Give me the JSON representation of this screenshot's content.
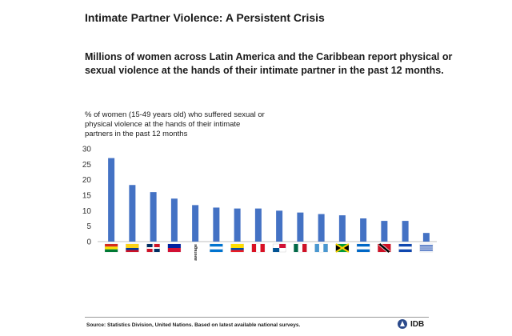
{
  "header": {
    "title": "Intimate Partner Violence: A Persistent Crisis",
    "subtitle": "Millions of women across Latin America and the Caribbean report physical or sexual violence at the hands of their intimate partner in the past 12 months."
  },
  "chart_data": {
    "type": "bar",
    "ylabel": "% of women (15-49 years old) who suffered sexual or physical violence at the hands of their intimate partners in  the past 12 months",
    "ylim": [
      0,
      30
    ],
    "yticks": [
      0,
      5,
      10,
      15,
      20,
      25,
      30
    ],
    "grid": false,
    "bar_color": "#4472c4",
    "categories": [
      "Bolivia",
      "Colombia",
      "Dominican Republic",
      "Haiti",
      "LAC average",
      "Honduras",
      "Ecuador",
      "Peru",
      "Panama",
      "Mexico",
      "Guatemala",
      "Jamaica",
      "Nicaragua",
      "Trinidad and Tobago",
      "El Salvador",
      "Uruguay"
    ],
    "category_labels": [
      "",
      "",
      "",
      "",
      "LAC average",
      "",
      "",
      "",
      "",
      "",
      "",
      "",
      "",
      "",
      "",
      ""
    ],
    "category_icons": [
      "flag-bolivia",
      "flag-colombia",
      "flag-dominican-republic",
      "flag-haiti",
      "",
      "flag-honduras",
      "flag-ecuador",
      "flag-peru",
      "flag-panama",
      "flag-mexico",
      "flag-guatemala",
      "flag-jamaica",
      "flag-nicaragua",
      "flag-trinidad-and-tobago",
      "flag-el-salvador",
      "flag-uruguay"
    ],
    "values": [
      27,
      18.3,
      16,
      13.9,
      11.8,
      11,
      10.7,
      10.7,
      10,
      9.4,
      8.9,
      8.5,
      7.5,
      6.7,
      6.7,
      2.8
    ]
  },
  "footer": {
    "source": "Source: Statistics Division, United Nations. Based on latest available national surveys.",
    "logo_text": "IDB",
    "logo_icon": "idb-logo-icon"
  }
}
